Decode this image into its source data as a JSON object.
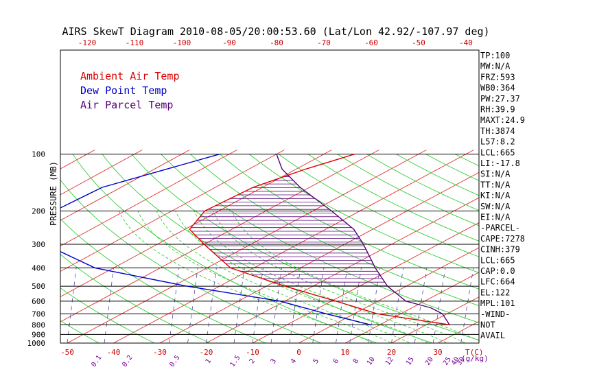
{
  "chart_data": {
    "type": "line",
    "title": "AIRS SkewT Diagram 2010-08-05/20:00:53.60 (Lat/Lon 42.92/-107.97 deg)",
    "ylabel": "PRESSURE (MB)",
    "xlabel": "T(C)",
    "mixing_ratio_unit": "(g/kg)",
    "pressure_levels": [
      100,
      200,
      300,
      400,
      500,
      600,
      700,
      800,
      900,
      1000
    ],
    "bottom_temp_ticks": [
      -50,
      -40,
      -30,
      -20,
      -10,
      0,
      10,
      20,
      30
    ],
    "top_temp_ticks": [
      -120,
      -110,
      -100,
      -90,
      -80,
      -70,
      -60,
      -50,
      -40
    ],
    "mixing_ratio_labels": [
      "0.1",
      "0.2",
      "0.5",
      "1",
      "1.5",
      "2",
      "3",
      "4",
      "5",
      "6",
      "8",
      "10",
      "12",
      "15",
      "20",
      "25",
      "30",
      "40"
    ],
    "legend": [
      {
        "label": "Ambient Air Temp",
        "color": "#dd0000"
      },
      {
        "label": "Dew Point Temp",
        "color": "#0000cc"
      },
      {
        "label": "Air Parcel Temp",
        "color": "#550077"
      }
    ],
    "series": [
      {
        "name": "Ambient Air Temp",
        "color": "#dd0000",
        "points": [
          [
            100,
            -63.5
          ],
          [
            120,
            -68
          ],
          [
            150,
            -72
          ],
          [
            200,
            -73
          ],
          [
            250,
            -69
          ],
          [
            300,
            -60
          ],
          [
            400,
            -45
          ],
          [
            500,
            -26
          ],
          [
            600,
            -9
          ],
          [
            700,
            5
          ],
          [
            800,
            25
          ]
        ]
      },
      {
        "name": "Dew Point Temp",
        "color": "#0000cc",
        "points": [
          [
            100,
            -92
          ],
          [
            150,
            -104
          ],
          [
            200,
            -105
          ],
          [
            250,
            -98
          ],
          [
            300,
            -94
          ],
          [
            400,
            -74
          ],
          [
            500,
            -47
          ],
          [
            600,
            -21
          ],
          [
            700,
            -6
          ],
          [
            800,
            8
          ]
        ]
      },
      {
        "name": "Air Parcel Temp",
        "color": "#550077",
        "points": [
          [
            100,
            -80
          ],
          [
            120,
            -73
          ],
          [
            150,
            -62
          ],
          [
            200,
            -46
          ],
          [
            250,
            -34
          ],
          [
            300,
            -26
          ],
          [
            400,
            -14
          ],
          [
            500,
            -4
          ],
          [
            600,
            6
          ],
          [
            650,
            14
          ],
          [
            700,
            19
          ],
          [
            800,
            25
          ]
        ]
      }
    ],
    "indices": [
      "TP:100",
      "MW:N/A",
      "FRZ:593",
      "WB0:364",
      "PW:27.37",
      "RH:39.9",
      "MAXT:24.9",
      "TH:3874",
      "L57:8.2",
      "LCL:665",
      "LI:-17.8",
      "SI:N/A",
      "TT:N/A",
      "KI:N/A",
      "SW:N/A",
      "EI:N/A",
      "-PARCEL-",
      "CAPE:7278",
      "CINH:379",
      "LCL:665",
      "CAP:0.0",
      "LFC:664",
      "EL:122",
      "MPL:101",
      "-WIND-",
      "NOT",
      "AVAIL"
    ],
    "grid": true
  }
}
